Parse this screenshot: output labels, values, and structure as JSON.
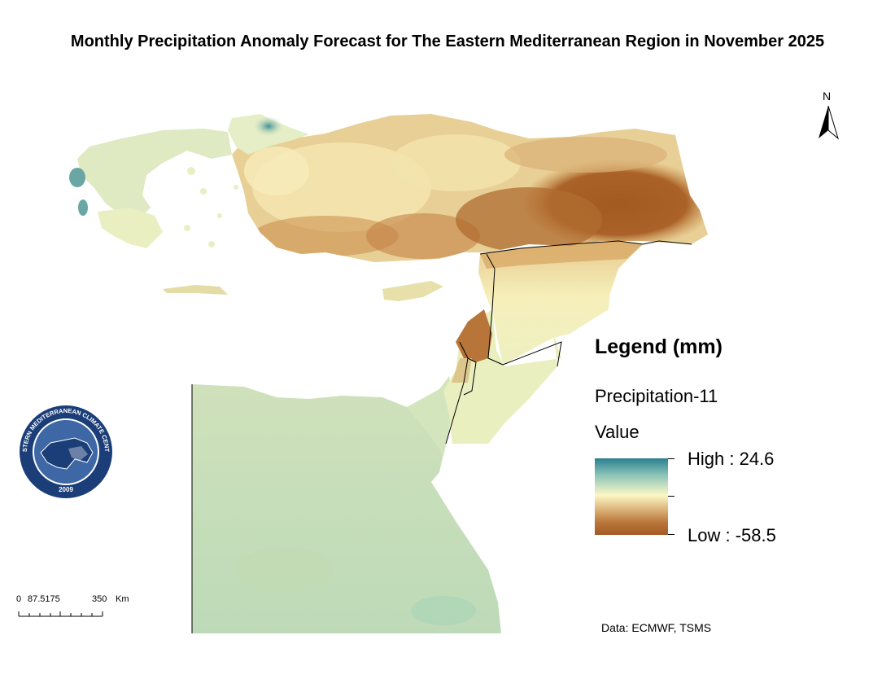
{
  "title": "Monthly Precipitation Anomaly Forecast for The Eastern Mediterranean Region in November 2025",
  "north_label": "N",
  "legend": {
    "title": "Legend (mm)",
    "layer": "Precipitation-11",
    "field": "Value",
    "high_label": "High : 24.6",
    "low_label": "Low : -58.5",
    "high_value": 24.6,
    "low_value": -58.5,
    "ramp_colors": [
      "#2a8090",
      "#8cc4b8",
      "#fbf8c6",
      "#e1be84",
      "#b9763a",
      "#a35a22"
    ]
  },
  "scale_bar": {
    "labels": [
      "0",
      "87.5175",
      "350",
      "Km"
    ]
  },
  "logo": {
    "ring_text": "EASTERN MEDITERRANEAN CLIMATE CENTRE",
    "year": "2009",
    "colors": {
      "ring": "#1c3e78",
      "inner": "#3e67a6"
    }
  },
  "credit": "Data: ECMWF, TSMS",
  "map_colors": {
    "wet": "#2a8090",
    "light_wet": "#bad9be",
    "neutral": "#fbf8c6",
    "mild_dry": "#e8cf96",
    "dry": "#c98a48",
    "very_dry": "#a35a22",
    "egypt_base": "#c6dcb4"
  }
}
